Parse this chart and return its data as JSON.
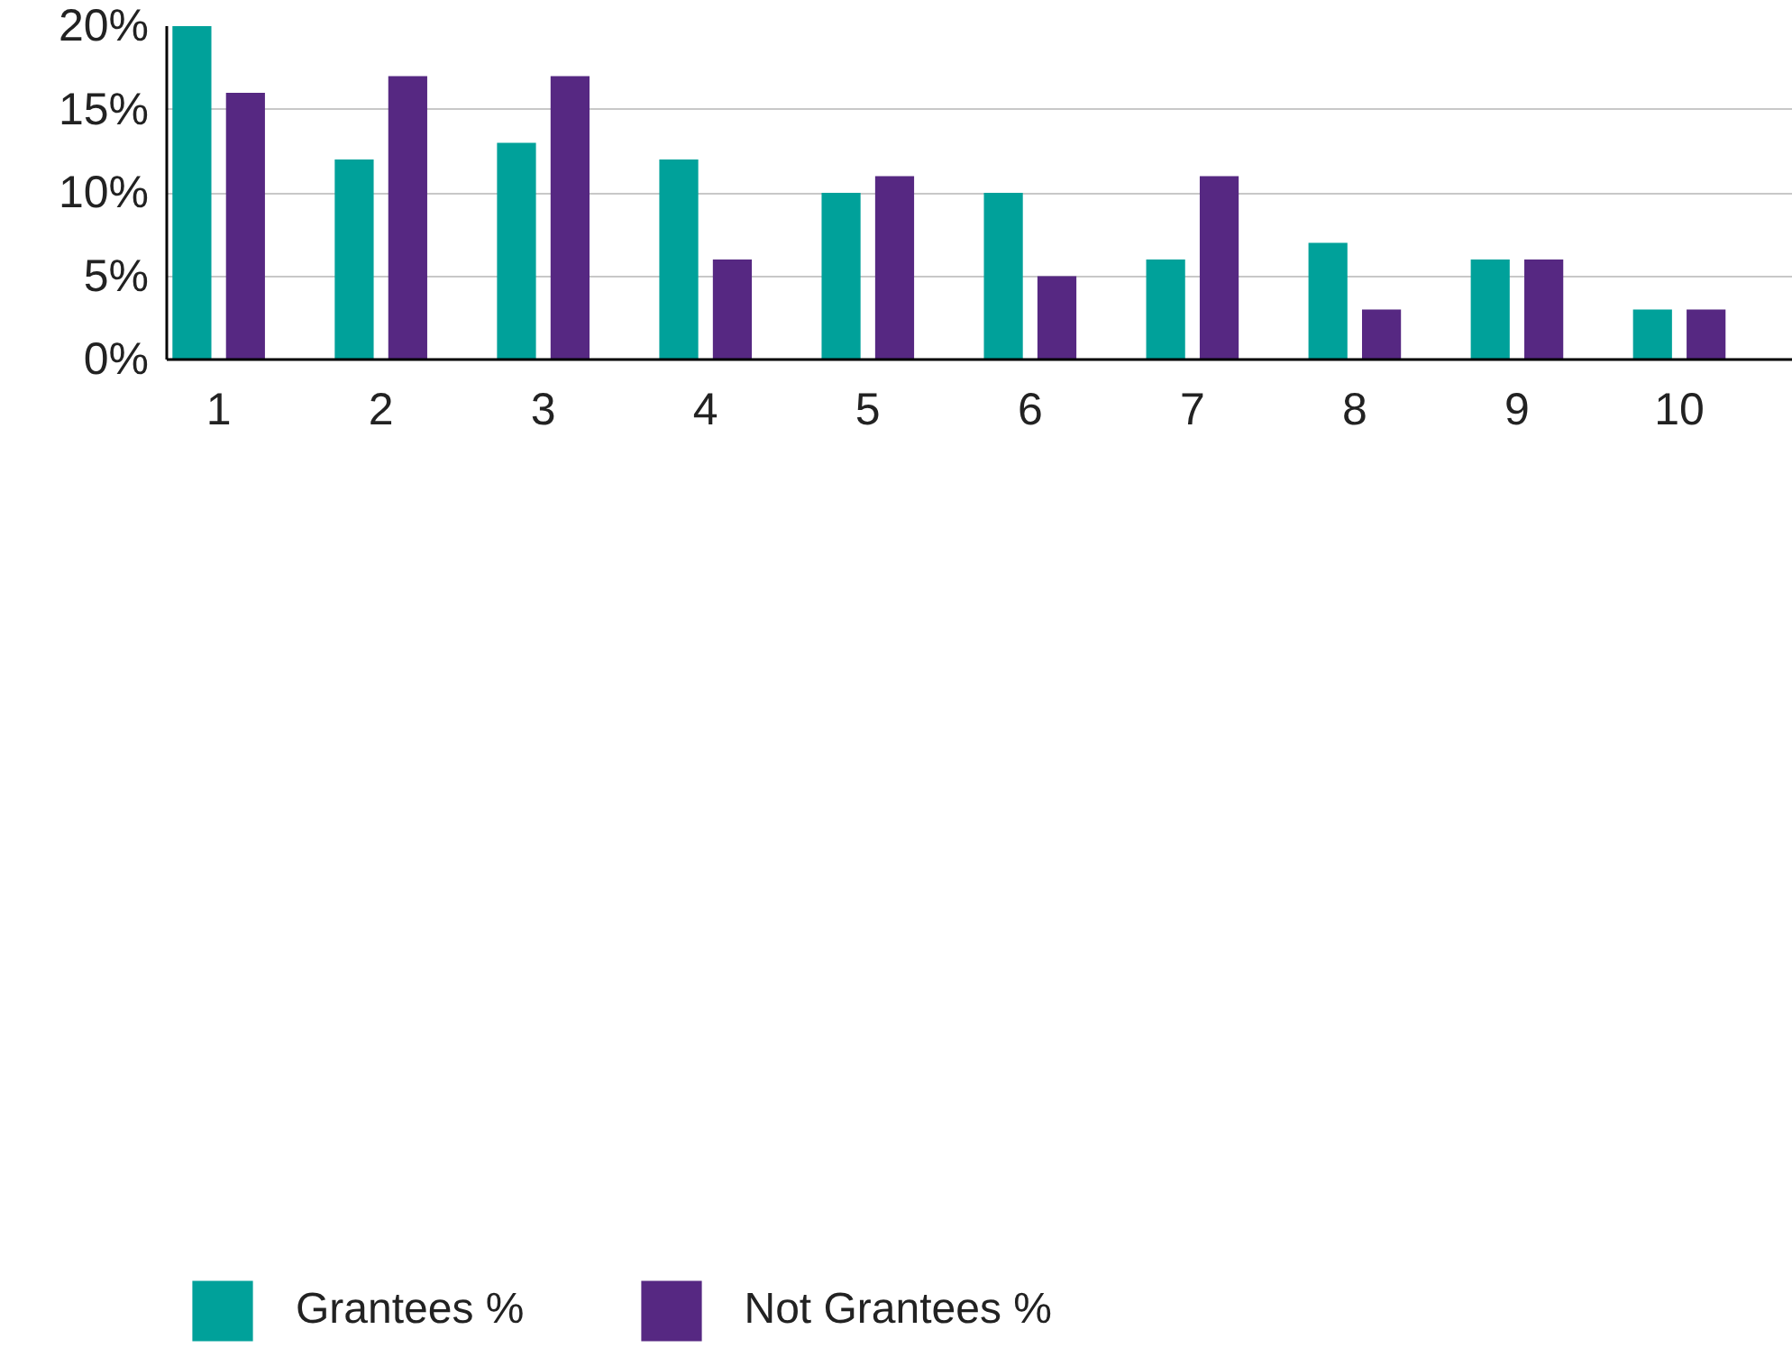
{
  "chart_data": {
    "type": "bar",
    "categories": [
      "1",
      "2",
      "3",
      "4",
      "5",
      "6",
      "7",
      "8",
      "9",
      "10"
    ],
    "series": [
      {
        "name": "Grantees %",
        "color": "#00a19a",
        "values": [
          20,
          12,
          13,
          12,
          10,
          10,
          6,
          7,
          6,
          3
        ]
      },
      {
        "name": "Not Grantees %",
        "color": "#562882",
        "values": [
          16,
          17,
          17,
          6,
          11,
          5,
          11,
          3,
          6,
          3
        ]
      }
    ],
    "ylim": [
      0,
      20
    ],
    "yticks": [
      {
        "value": 0,
        "label": "0%"
      },
      {
        "value": 5,
        "label": "5%"
      },
      {
        "value": 10,
        "label": "10%"
      },
      {
        "value": 15,
        "label": "15%"
      },
      {
        "value": 20,
        "label": "20%"
      }
    ],
    "grid": "y",
    "legend": "bottom left"
  }
}
